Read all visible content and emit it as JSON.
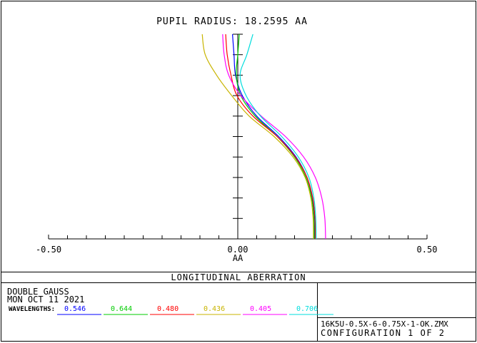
{
  "chart_data": {
    "type": "line",
    "title": "PUPIL RADIUS: 18.2595  AA",
    "xlabel": "AA",
    "xlim": [
      -0.5,
      0.5
    ],
    "ylim": [
      0,
      1
    ],
    "x_ticks": [
      {
        "value": -0.5,
        "label": "-0.50"
      },
      {
        "value": 0.0,
        "label": "0.00"
      },
      {
        "value": 0.5,
        "label": "0.50"
      }
    ],
    "series": [
      {
        "color": "#0000ff",
        "points": [
          [
            0.204,
            0
          ],
          [
            0.203,
            0.1
          ],
          [
            0.197,
            0.2
          ],
          [
            0.183,
            0.3
          ],
          [
            0.154,
            0.4
          ],
          [
            0.108,
            0.5
          ],
          [
            0.05,
            0.6
          ],
          [
            0.012,
            0.7
          ],
          [
            -0.006,
            0.8
          ],
          [
            -0.01,
            0.9
          ],
          [
            -0.014,
            1.0
          ]
        ]
      },
      {
        "color": "#00cc00",
        "points": [
          [
            0.202,
            0
          ],
          [
            0.201,
            0.1
          ],
          [
            0.195,
            0.2
          ],
          [
            0.18,
            0.3
          ],
          [
            0.15,
            0.4
          ],
          [
            0.104,
            0.5
          ],
          [
            0.046,
            0.6
          ],
          [
            0.008,
            0.7
          ],
          [
            -0.004,
            0.8
          ],
          [
            0.0,
            0.9
          ],
          [
            0.004,
            1.0
          ]
        ]
      },
      {
        "color": "#ff0000",
        "points": [
          [
            0.205,
            0
          ],
          [
            0.204,
            0.1
          ],
          [
            0.198,
            0.2
          ],
          [
            0.183,
            0.3
          ],
          [
            0.152,
            0.4
          ],
          [
            0.104,
            0.5
          ],
          [
            0.04,
            0.6
          ],
          [
            -0.002,
            0.7
          ],
          [
            -0.018,
            0.8
          ],
          [
            -0.028,
            0.9
          ],
          [
            -0.032,
            1.0
          ]
        ]
      },
      {
        "color": "#c8b400",
        "points": [
          [
            0.2,
            0
          ],
          [
            0.199,
            0.1
          ],
          [
            0.193,
            0.2
          ],
          [
            0.178,
            0.3
          ],
          [
            0.146,
            0.4
          ],
          [
            0.096,
            0.5
          ],
          [
            0.03,
            0.6
          ],
          [
            -0.016,
            0.7
          ],
          [
            -0.056,
            0.8
          ],
          [
            -0.086,
            0.9
          ],
          [
            -0.094,
            1.0
          ]
        ]
      },
      {
        "color": "#ff00ff",
        "points": [
          [
            0.232,
            0
          ],
          [
            0.23,
            0.1
          ],
          [
            0.222,
            0.2
          ],
          [
            0.205,
            0.3
          ],
          [
            0.174,
            0.4
          ],
          [
            0.126,
            0.5
          ],
          [
            0.062,
            0.6
          ],
          [
            0.008,
            0.7
          ],
          [
            -0.024,
            0.8
          ],
          [
            -0.036,
            0.9
          ],
          [
            -0.04,
            1.0
          ]
        ]
      },
      {
        "color": "#00dddd",
        "points": [
          [
            0.207,
            0
          ],
          [
            0.206,
            0.1
          ],
          [
            0.201,
            0.2
          ],
          [
            0.188,
            0.3
          ],
          [
            0.16,
            0.4
          ],
          [
            0.116,
            0.5
          ],
          [
            0.06,
            0.6
          ],
          [
            0.022,
            0.7
          ],
          [
            0.006,
            0.8
          ],
          [
            0.024,
            0.9
          ],
          [
            0.04,
            1.0
          ]
        ]
      }
    ]
  },
  "plot_name": "LONGITUDINAL ABERRATION",
  "info": {
    "line1": "DOUBLE GAUSS",
    "line2": "MON OCT 11 2021",
    "wavelengths_label": "WAVELENGTHS:",
    "wavelengths": [
      {
        "value": "0.546",
        "color": "#0000ff"
      },
      {
        "value": "0.644",
        "color": "#00cc00"
      },
      {
        "value": "0.480",
        "color": "#ff0000"
      },
      {
        "value": "0.436",
        "color": "#c8b400"
      },
      {
        "value": "0.405",
        "color": "#ff00ff"
      },
      {
        "value": "0.706",
        "color": "#00dddd"
      }
    ],
    "file_name": "16K5U-0.5X-6-0.75X-1-OK.ZMX",
    "configuration": "CONFIGURATION 1 OF 2"
  }
}
